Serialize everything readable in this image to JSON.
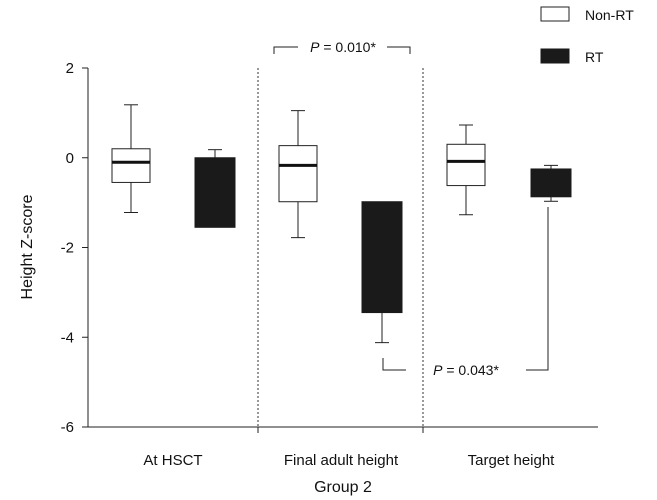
{
  "chart_data": {
    "type": "boxplot",
    "title": "",
    "xlabel": "Group 2",
    "ylabel": "Height Z-score",
    "ylim": [
      -6,
      2
    ],
    "yticks": [
      2,
      0,
      -2,
      -4,
      -6
    ],
    "ytick_labels": [
      "2",
      "0",
      "-2",
      "-4",
      "-6"
    ],
    "categories": [
      "At HSCT",
      "Final adult height",
      "Target height"
    ],
    "grid": false,
    "legend_position": "top-right",
    "series": [
      {
        "name": "Non-RT",
        "color": "#ffffff",
        "boxes": [
          {
            "min": -1.22,
            "q1": -0.55,
            "median": -0.1,
            "q3": 0.2,
            "max": 1.18
          },
          {
            "min": -1.78,
            "q1": -0.98,
            "median": -0.17,
            "q3": 0.27,
            "max": 1.05
          },
          {
            "min": -1.27,
            "q1": -0.62,
            "median": -0.08,
            "q3": 0.3,
            "max": 0.73
          }
        ]
      },
      {
        "name": "RT",
        "color": "#1a1a1a",
        "boxes": [
          {
            "min": -1.55,
            "q1": -1.55,
            "median": -1.55,
            "q3": 0.0,
            "max": 0.18
          },
          {
            "min": -4.12,
            "q1": -3.45,
            "median": -3.45,
            "q3": -0.98,
            "max": -0.98
          },
          {
            "min": -0.97,
            "q1": -0.87,
            "median": -0.87,
            "q3": -0.25,
            "max": -0.17
          }
        ]
      }
    ],
    "annotations": [
      {
        "p_label": "P",
        "value_text": " = 0.010*"
      },
      {
        "p_label": "P",
        "value_text": " = 0.043*"
      }
    ]
  }
}
